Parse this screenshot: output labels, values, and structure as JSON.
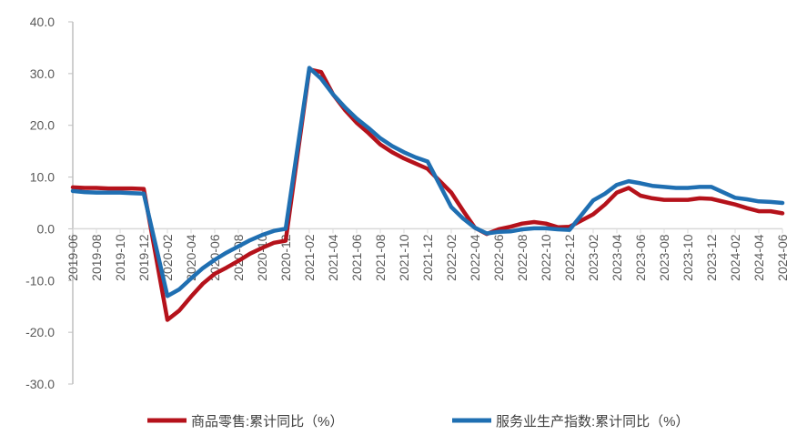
{
  "chart_data": {
    "type": "line",
    "title": "",
    "xlabel": "",
    "ylabel": "",
    "ylim": [
      -30,
      40
    ],
    "ytick_step": 10,
    "ytick_labels": [
      "40.0",
      "30.0",
      "20.0",
      "10.0",
      "0.0",
      "-10.0",
      "-20.0",
      "-30.0"
    ],
    "grid": false,
    "legend": "bottom",
    "categories": [
      "2019-06",
      "2019-07",
      "2019-08",
      "2019-09",
      "2019-10",
      "2019-11",
      "2019-12",
      "2020-01",
      "2020-02",
      "2020-03",
      "2020-04",
      "2020-05",
      "2020-06",
      "2020-07",
      "2020-08",
      "2020-09",
      "2020-10",
      "2020-11",
      "2020-12",
      "2021-01",
      "2021-02",
      "2021-03",
      "2021-04",
      "2021-05",
      "2021-06",
      "2021-07",
      "2021-08",
      "2021-09",
      "2021-10",
      "2021-11",
      "2021-12",
      "2022-01",
      "2022-02",
      "2022-03",
      "2022-04",
      "2022-05",
      "2022-06",
      "2022-07",
      "2022-08",
      "2022-09",
      "2022-10",
      "2022-11",
      "2022-12",
      "2023-01",
      "2023-02",
      "2023-03",
      "2023-04",
      "2023-05",
      "2023-06",
      "2023-07",
      "2023-08",
      "2023-09",
      "2023-10",
      "2023-11",
      "2023-12",
      "2024-01",
      "2024-02",
      "2024-03",
      "2024-04",
      "2024-05",
      "2024-06"
    ],
    "series": [
      {
        "name": "商品零售:累计同比（%）",
        "color": "#b5121b",
        "values": [
          8.0,
          7.9,
          7.9,
          7.8,
          7.8,
          7.8,
          7.7,
          null,
          -17.6,
          -15.8,
          -13.1,
          -10.6,
          -8.7,
          -7.5,
          -6.2,
          -4.8,
          -3.7,
          -2.7,
          -2.3,
          null,
          30.8,
          30.3,
          26.0,
          23.0,
          20.5,
          18.5,
          16.3,
          14.8,
          13.6,
          12.6,
          11.6,
          null,
          7.0,
          3.5,
          0.2,
          -1.0,
          -0.1,
          0.4,
          1.0,
          1.3,
          1.0,
          0.3,
          0.4,
          null,
          2.8,
          4.7,
          7.0,
          7.9,
          6.4,
          5.9,
          5.6,
          5.6,
          5.6,
          5.9,
          5.8,
          null,
          4.7,
          4.0,
          3.4,
          3.4,
          3.0
        ]
      },
      {
        "name": "服务业生产指数:累计同比（%）",
        "color": "#1f6fb2",
        "values": [
          7.3,
          7.1,
          7.0,
          7.0,
          7.0,
          6.9,
          6.8,
          null,
          -13.0,
          -11.7,
          -9.6,
          -7.6,
          -6.0,
          -4.6,
          -3.4,
          -2.2,
          -1.2,
          -0.4,
          0.0,
          null,
          31.1,
          29.0,
          26.0,
          23.5,
          21.3,
          19.5,
          17.5,
          16.0,
          14.8,
          13.8,
          13.0,
          null,
          4.2,
          2.0,
          0.2,
          -0.9,
          -0.6,
          -0.5,
          -0.1,
          0.1,
          0.1,
          -0.1,
          -0.2,
          null,
          5.5,
          6.8,
          8.5,
          9.2,
          8.8,
          8.3,
          8.1,
          7.9,
          7.9,
          8.1,
          8.1,
          null,
          6.0,
          5.7,
          5.3,
          5.2,
          5.0
        ]
      }
    ]
  }
}
